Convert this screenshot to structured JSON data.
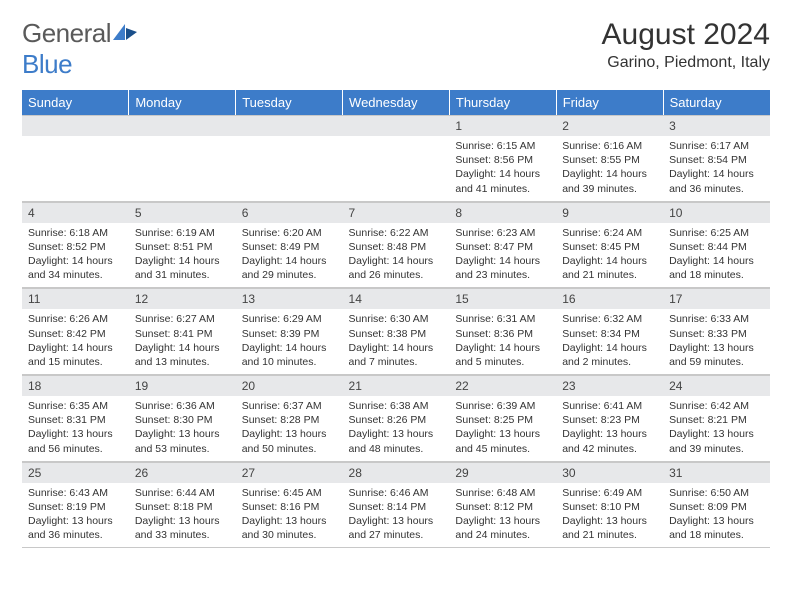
{
  "brand": {
    "name_a": "General",
    "name_b": "Blue"
  },
  "title": "August 2024",
  "location": "Garino, Piedmont, Italy",
  "colors": {
    "header_bg": "#3d7cc9",
    "header_text": "#ffffff",
    "daynum_bg": "#e7e8ea",
    "border": "#c8c8c8",
    "text": "#333333",
    "logo_gray": "#5a5a5a",
    "logo_blue": "#3d7cc9"
  },
  "day_headers": [
    "Sunday",
    "Monday",
    "Tuesday",
    "Wednesday",
    "Thursday",
    "Friday",
    "Saturday"
  ],
  "weeks": [
    [
      null,
      null,
      null,
      null,
      {
        "n": "1",
        "sr": "Sunrise: 6:15 AM",
        "ss": "Sunset: 8:56 PM",
        "dl": "Daylight: 14 hours and 41 minutes."
      },
      {
        "n": "2",
        "sr": "Sunrise: 6:16 AM",
        "ss": "Sunset: 8:55 PM",
        "dl": "Daylight: 14 hours and 39 minutes."
      },
      {
        "n": "3",
        "sr": "Sunrise: 6:17 AM",
        "ss": "Sunset: 8:54 PM",
        "dl": "Daylight: 14 hours and 36 minutes."
      }
    ],
    [
      {
        "n": "4",
        "sr": "Sunrise: 6:18 AM",
        "ss": "Sunset: 8:52 PM",
        "dl": "Daylight: 14 hours and 34 minutes."
      },
      {
        "n": "5",
        "sr": "Sunrise: 6:19 AM",
        "ss": "Sunset: 8:51 PM",
        "dl": "Daylight: 14 hours and 31 minutes."
      },
      {
        "n": "6",
        "sr": "Sunrise: 6:20 AM",
        "ss": "Sunset: 8:49 PM",
        "dl": "Daylight: 14 hours and 29 minutes."
      },
      {
        "n": "7",
        "sr": "Sunrise: 6:22 AM",
        "ss": "Sunset: 8:48 PM",
        "dl": "Daylight: 14 hours and 26 minutes."
      },
      {
        "n": "8",
        "sr": "Sunrise: 6:23 AM",
        "ss": "Sunset: 8:47 PM",
        "dl": "Daylight: 14 hours and 23 minutes."
      },
      {
        "n": "9",
        "sr": "Sunrise: 6:24 AM",
        "ss": "Sunset: 8:45 PM",
        "dl": "Daylight: 14 hours and 21 minutes."
      },
      {
        "n": "10",
        "sr": "Sunrise: 6:25 AM",
        "ss": "Sunset: 8:44 PM",
        "dl": "Daylight: 14 hours and 18 minutes."
      }
    ],
    [
      {
        "n": "11",
        "sr": "Sunrise: 6:26 AM",
        "ss": "Sunset: 8:42 PM",
        "dl": "Daylight: 14 hours and 15 minutes."
      },
      {
        "n": "12",
        "sr": "Sunrise: 6:27 AM",
        "ss": "Sunset: 8:41 PM",
        "dl": "Daylight: 14 hours and 13 minutes."
      },
      {
        "n": "13",
        "sr": "Sunrise: 6:29 AM",
        "ss": "Sunset: 8:39 PM",
        "dl": "Daylight: 14 hours and 10 minutes."
      },
      {
        "n": "14",
        "sr": "Sunrise: 6:30 AM",
        "ss": "Sunset: 8:38 PM",
        "dl": "Daylight: 14 hours and 7 minutes."
      },
      {
        "n": "15",
        "sr": "Sunrise: 6:31 AM",
        "ss": "Sunset: 8:36 PM",
        "dl": "Daylight: 14 hours and 5 minutes."
      },
      {
        "n": "16",
        "sr": "Sunrise: 6:32 AM",
        "ss": "Sunset: 8:34 PM",
        "dl": "Daylight: 14 hours and 2 minutes."
      },
      {
        "n": "17",
        "sr": "Sunrise: 6:33 AM",
        "ss": "Sunset: 8:33 PM",
        "dl": "Daylight: 13 hours and 59 minutes."
      }
    ],
    [
      {
        "n": "18",
        "sr": "Sunrise: 6:35 AM",
        "ss": "Sunset: 8:31 PM",
        "dl": "Daylight: 13 hours and 56 minutes."
      },
      {
        "n": "19",
        "sr": "Sunrise: 6:36 AM",
        "ss": "Sunset: 8:30 PM",
        "dl": "Daylight: 13 hours and 53 minutes."
      },
      {
        "n": "20",
        "sr": "Sunrise: 6:37 AM",
        "ss": "Sunset: 8:28 PM",
        "dl": "Daylight: 13 hours and 50 minutes."
      },
      {
        "n": "21",
        "sr": "Sunrise: 6:38 AM",
        "ss": "Sunset: 8:26 PM",
        "dl": "Daylight: 13 hours and 48 minutes."
      },
      {
        "n": "22",
        "sr": "Sunrise: 6:39 AM",
        "ss": "Sunset: 8:25 PM",
        "dl": "Daylight: 13 hours and 45 minutes."
      },
      {
        "n": "23",
        "sr": "Sunrise: 6:41 AM",
        "ss": "Sunset: 8:23 PM",
        "dl": "Daylight: 13 hours and 42 minutes."
      },
      {
        "n": "24",
        "sr": "Sunrise: 6:42 AM",
        "ss": "Sunset: 8:21 PM",
        "dl": "Daylight: 13 hours and 39 minutes."
      }
    ],
    [
      {
        "n": "25",
        "sr": "Sunrise: 6:43 AM",
        "ss": "Sunset: 8:19 PM",
        "dl": "Daylight: 13 hours and 36 minutes."
      },
      {
        "n": "26",
        "sr": "Sunrise: 6:44 AM",
        "ss": "Sunset: 8:18 PM",
        "dl": "Daylight: 13 hours and 33 minutes."
      },
      {
        "n": "27",
        "sr": "Sunrise: 6:45 AM",
        "ss": "Sunset: 8:16 PM",
        "dl": "Daylight: 13 hours and 30 minutes."
      },
      {
        "n": "28",
        "sr": "Sunrise: 6:46 AM",
        "ss": "Sunset: 8:14 PM",
        "dl": "Daylight: 13 hours and 27 minutes."
      },
      {
        "n": "29",
        "sr": "Sunrise: 6:48 AM",
        "ss": "Sunset: 8:12 PM",
        "dl": "Daylight: 13 hours and 24 minutes."
      },
      {
        "n": "30",
        "sr": "Sunrise: 6:49 AM",
        "ss": "Sunset: 8:10 PM",
        "dl": "Daylight: 13 hours and 21 minutes."
      },
      {
        "n": "31",
        "sr": "Sunrise: 6:50 AM",
        "ss": "Sunset: 8:09 PM",
        "dl": "Daylight: 13 hours and 18 minutes."
      }
    ]
  ]
}
